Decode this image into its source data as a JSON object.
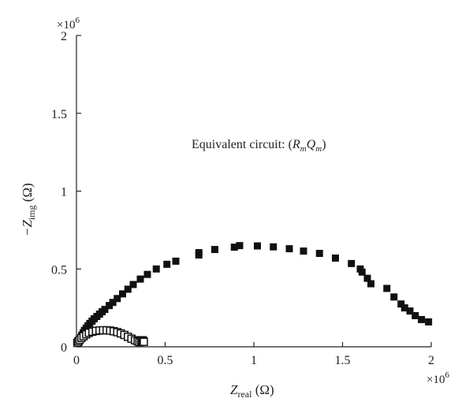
{
  "chart_data": {
    "type": "scatter",
    "x_multiplier_label": "×10",
    "x_multiplier_exp": "6",
    "y_multiplier_label": "×10",
    "y_multiplier_exp": "6",
    "xlabel_main": "Z",
    "xlabel_sub": "real",
    "xlabel_unit": " (Ω)",
    "ylabel_main": "−Z",
    "ylabel_sub": "img",
    "ylabel_unit": " (Ω)",
    "xlim": [
      0,
      2000000
    ],
    "ylim": [
      0,
      2000000
    ],
    "x_ticks": [
      {
        "value": 0,
        "label": "0"
      },
      {
        "value": 500000,
        "label": "0.5"
      },
      {
        "value": 1000000,
        "label": "1"
      },
      {
        "value": 1500000,
        "label": "1.5"
      },
      {
        "value": 2000000,
        "label": "2"
      }
    ],
    "y_ticks": [
      {
        "value": 0,
        "label": "0"
      },
      {
        "value": 500000,
        "label": "0.5"
      },
      {
        "value": 1000000,
        "label": "1"
      },
      {
        "value": 1500000,
        "label": "1.5"
      },
      {
        "value": 2000000,
        "label": "2"
      }
    ],
    "annotation": {
      "prefix": "Equivalent circuit: (",
      "r": "R",
      "r_sub": "m",
      "q": "Q",
      "q_sub": "m",
      "suffix": ")"
    },
    "series": [
      {
        "marker": "filled-square",
        "color": "#111111",
        "points": [
          [
            15000,
            30000
          ],
          [
            20000,
            45000
          ],
          [
            25000,
            60000
          ],
          [
            30000,
            75000
          ],
          [
            38000,
            90000
          ],
          [
            45000,
            105000
          ],
          [
            55000,
            120000
          ],
          [
            65000,
            135000
          ],
          [
            75000,
            150000
          ],
          [
            88000,
            165000
          ],
          [
            100000,
            180000
          ],
          [
            115000,
            195000
          ],
          [
            130000,
            210000
          ],
          [
            145000,
            225000
          ],
          [
            160000,
            240000
          ],
          [
            185000,
            265000
          ],
          [
            205000,
            285000
          ],
          [
            230000,
            310000
          ],
          [
            260000,
            340000
          ],
          [
            290000,
            370000
          ],
          [
            320000,
            400000
          ],
          [
            360000,
            435000
          ],
          [
            400000,
            465000
          ],
          [
            450000,
            500000
          ],
          [
            510000,
            530000
          ],
          [
            560000,
            550000
          ],
          [
            690000,
            590000
          ],
          [
            690000,
            605000
          ],
          [
            780000,
            625000
          ],
          [
            890000,
            640000
          ],
          [
            920000,
            650000
          ],
          [
            1020000,
            648000
          ],
          [
            1110000,
            642000
          ],
          [
            1200000,
            630000
          ],
          [
            1280000,
            615000
          ],
          [
            1370000,
            600000
          ],
          [
            1460000,
            570000
          ],
          [
            1550000,
            535000
          ],
          [
            1600000,
            500000
          ],
          [
            1610000,
            480000
          ],
          [
            1640000,
            440000
          ],
          [
            1660000,
            405000
          ],
          [
            1750000,
            375000
          ],
          [
            1790000,
            320000
          ],
          [
            1830000,
            275000
          ],
          [
            1850000,
            250000
          ],
          [
            1880000,
            230000
          ],
          [
            1910000,
            200000
          ],
          [
            1945000,
            175000
          ],
          [
            1985000,
            160000
          ]
        ]
      },
      {
        "marker": "open-square",
        "color": "#111111",
        "points": [
          [
            5000,
            25000
          ],
          [
            10000,
            35000
          ],
          [
            18000,
            45000
          ],
          [
            28000,
            57000
          ],
          [
            40000,
            68000
          ],
          [
            55000,
            80000
          ],
          [
            70000,
            90000
          ],
          [
            90000,
            97000
          ],
          [
            110000,
            102000
          ],
          [
            130000,
            105000
          ],
          [
            150000,
            106000
          ],
          [
            170000,
            106000
          ],
          [
            190000,
            104000
          ],
          [
            210000,
            100000
          ],
          [
            230000,
            94000
          ],
          [
            250000,
            86000
          ],
          [
            270000,
            76000
          ],
          [
            290000,
            64000
          ],
          [
            310000,
            52000
          ],
          [
            330000,
            42000
          ],
          [
            345000,
            35000
          ],
          [
            355000,
            30000
          ],
          [
            365000,
            35000
          ],
          [
            372000,
            42000
          ],
          [
            377000,
            37000
          ],
          [
            380000,
            32000
          ]
        ]
      }
    ]
  }
}
